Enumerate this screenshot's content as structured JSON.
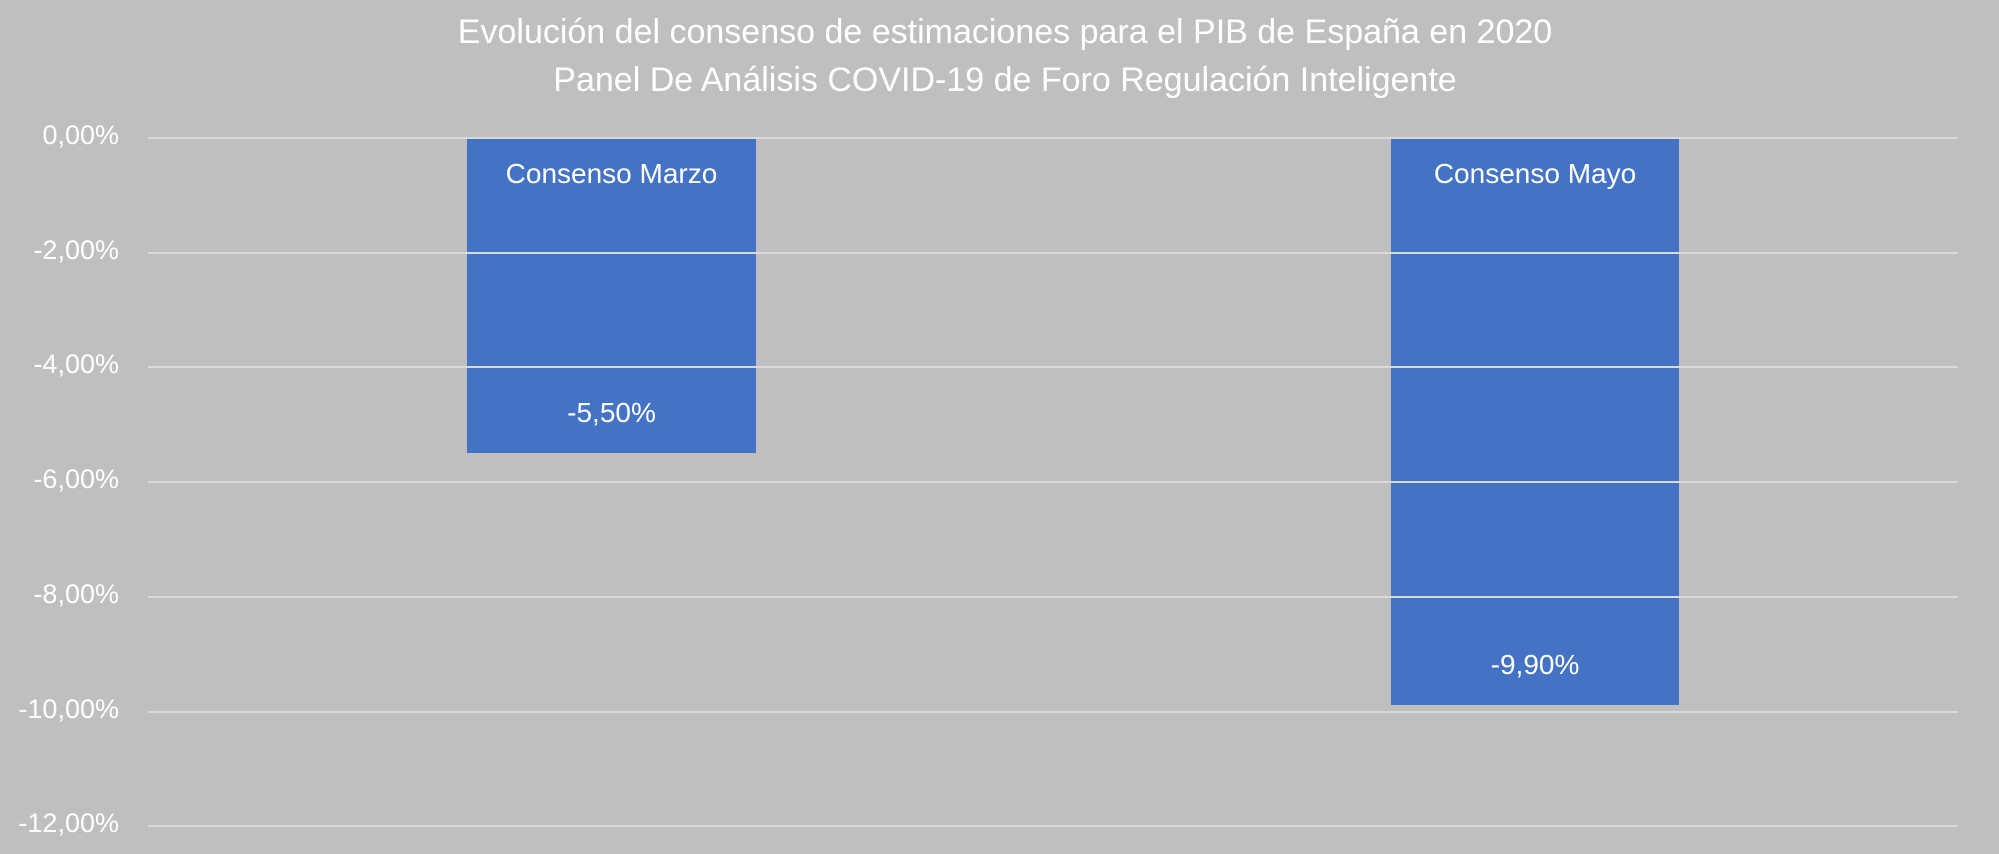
{
  "chart_data": {
    "type": "bar",
    "title": "Evolución del consenso de estimaciones para el PIB de España en 2020",
    "subtitle": "Panel De Análisis COVID-19 de Foro Regulación Inteligente",
    "categories": [
      "Consenso Marzo",
      "Consenso Mayo"
    ],
    "values": [
      -5.5,
      -9.9
    ],
    "value_labels": [
      "-5,50%",
      "-9,90%"
    ],
    "xlabel": "",
    "ylabel": "",
    "ylim": [
      -12,
      0
    ],
    "yticks": [
      "0,00%",
      "-2,00%",
      "-4,00%",
      "-6,00%",
      "-8,00%",
      "-10,00%",
      "-12,00%"
    ],
    "grid": true,
    "legend": "none",
    "colors": {
      "bar": "#4472c4",
      "background": "#bfbfbf",
      "grid": "#d9d9d9"
    }
  }
}
